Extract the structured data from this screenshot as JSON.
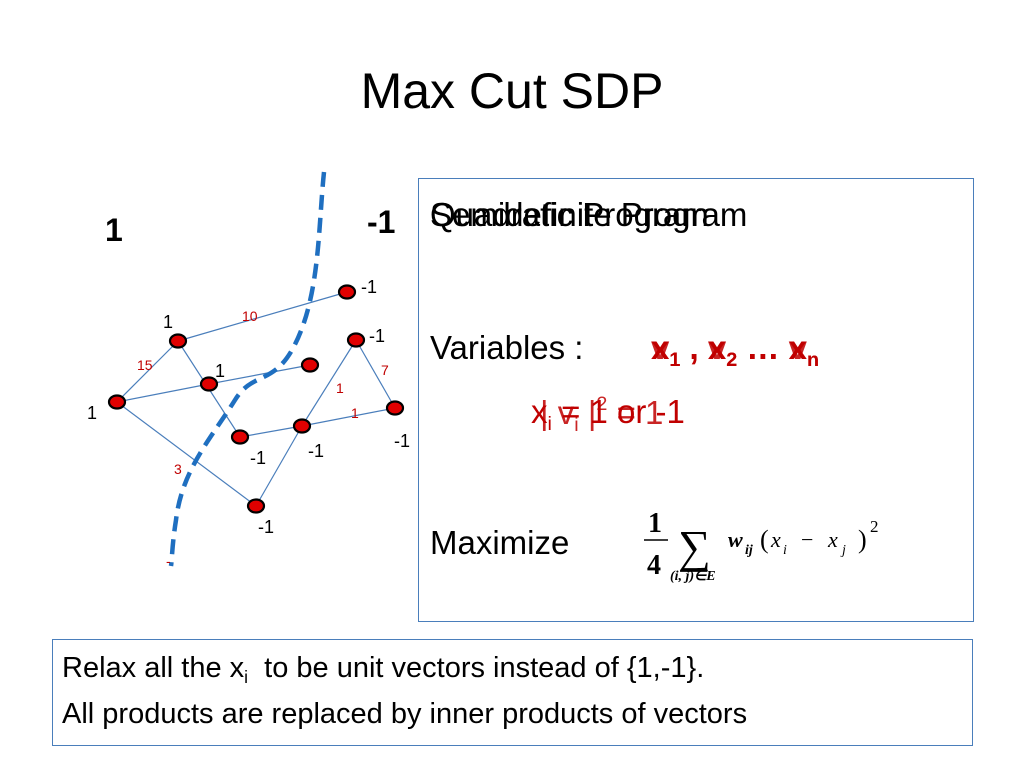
{
  "title": "Max Cut SDP",
  "sides": {
    "left": "1",
    "right": "-1"
  },
  "graph": {
    "node_labels": [
      "-1",
      "1",
      "-1",
      "1",
      "-1",
      "1",
      "-1",
      "-1",
      "-1",
      "-1"
    ],
    "edge_weights": [
      "10",
      "15",
      "7",
      "1",
      "1",
      "3"
    ],
    "cut_marker": "-"
  },
  "program": {
    "heading_a": "Quadratic Program",
    "heading_b": "Semidefinite Program",
    "variables_label": "Variables :",
    "vars_x": [
      "x",
      "1",
      " , x",
      "2",
      " … x",
      "n"
    ],
    "vars_v": [
      "v",
      "1",
      " , v",
      "2",
      " … v",
      "n"
    ],
    "constraint_a": [
      "x",
      "i",
      " = 1 or -1"
    ],
    "constraint_b": [
      "| v",
      "i",
      " |",
      "2",
      " = 1"
    ],
    "maximize_label": "Maximize",
    "formula": {
      "frac_num": "1",
      "frac_den": "4",
      "sum": "∑",
      "sum_sub": "(i, j)∈E",
      "w": "w",
      "w_sub": "ij",
      "x_i": "x",
      "i": "i",
      "minus": "−",
      "x_j": "x",
      "j": "j",
      "power": "2"
    }
  },
  "bottom": {
    "line1_a": "Relax all the x",
    "line1_sub": "i",
    "line1_b": "  to be unit vectors instead of {1,-1}.",
    "line2": "All products are replaced by inner products of vectors"
  },
  "colors": {
    "accent_blue": "#1f6fc0",
    "edge_blue": "#4a7ebb",
    "node_red": "#e00000",
    "weight_red": "#c00000"
  }
}
